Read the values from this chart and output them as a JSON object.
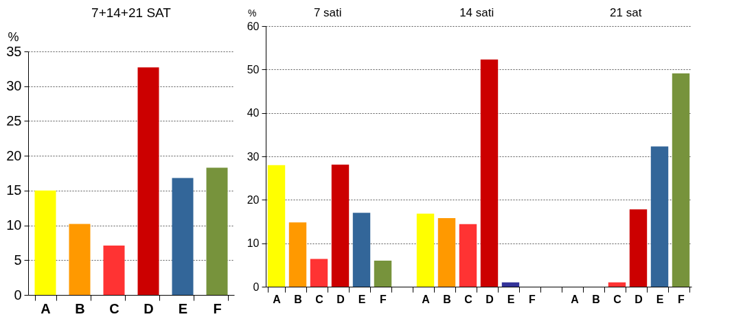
{
  "chart_data": [
    {
      "type": "bar",
      "title": "7+14+21 SAT",
      "ylabel": "%",
      "categories": [
        "A",
        "B",
        "C",
        "D",
        "E",
        "F"
      ],
      "values": [
        15,
        10.2,
        7.1,
        32.7,
        16.8,
        18.3
      ],
      "colors": [
        "#ffff00",
        "#ff9900",
        "#ff3333",
        "#cc0000",
        "#336699",
        "#77933c"
      ],
      "ylim": [
        0,
        35
      ],
      "yticks": [
        0,
        5,
        10,
        15,
        20,
        25,
        30,
        35
      ],
      "grid": "y"
    },
    {
      "type": "bar",
      "ylabel": "%",
      "annotations": [
        "7 sati",
        "14 sati",
        "21 sat"
      ],
      "categories": [
        "A",
        "B",
        "C",
        "D",
        "E",
        "F",
        null,
        "A",
        "B",
        "C",
        "D",
        "E",
        "F",
        null,
        "A",
        "B",
        "C",
        "D",
        "E",
        "F"
      ],
      "values": [
        28,
        14.8,
        6.4,
        28.1,
        17,
        6,
        null,
        16.8,
        15.8,
        14.4,
        52.3,
        1,
        0,
        null,
        0,
        0,
        1,
        17.8,
        32.3,
        49.1
      ],
      "colors": [
        "#ffff00",
        "#ff9900",
        "#ff3333",
        "#cc0000",
        "#336699",
        "#77933c",
        null,
        "#ffff00",
        "#ff9900",
        "#ff3333",
        "#cc0000",
        "#333399",
        "#77933c",
        null,
        "#ffff00",
        "#ff9900",
        "#ff3333",
        "#cc0000",
        "#336699",
        "#77933c"
      ],
      "ylim": [
        0,
        60
      ],
      "yticks": [
        0,
        10,
        20,
        30,
        40,
        50,
        60
      ],
      "grid": "y"
    }
  ]
}
